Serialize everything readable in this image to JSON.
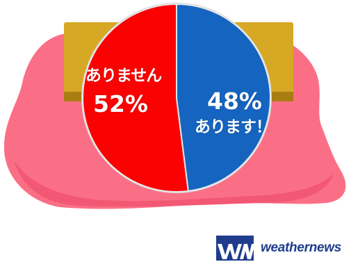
{
  "chart_data": {
    "type": "pie",
    "slices": [
      {
        "label": "ありません",
        "value": 52,
        "value_label": "52%",
        "color": "#fb0202"
      },
      {
        "label": "あります！",
        "value": 48,
        "value_label": "48%",
        "color": "#1565c0"
      }
    ]
  },
  "colors": {
    "cloth": "#fb6f86",
    "cloth_shadow": "#f25873",
    "box": "#d7a824",
    "box_dark": "#a87d12",
    "brand": "#1f3d8c"
  },
  "brand": {
    "logo_letters": "WN",
    "name": "weathernews",
    "logo_icon": "weathernews-logo-icon"
  }
}
